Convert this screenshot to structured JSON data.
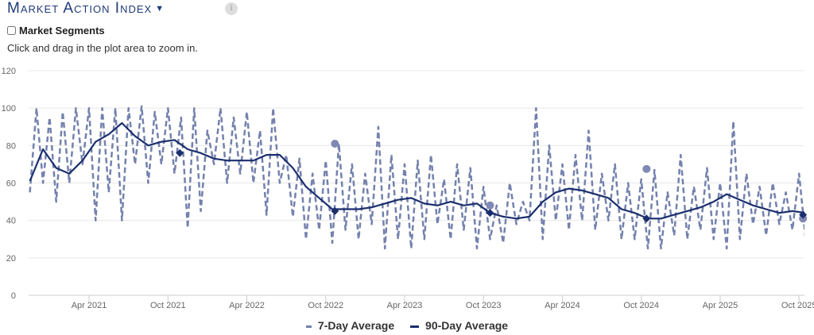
{
  "header": {
    "title": "Market Action Index",
    "info_icon": "i",
    "segments_label": "Market Segments",
    "hint": "Click and drag in the plot area to zoom in."
  },
  "chart_data": {
    "type": "line",
    "title": "Market Action Index",
    "ylim": [
      0,
      120
    ],
    "yticks": [
      0,
      20,
      40,
      60,
      80,
      100,
      120
    ],
    "x_origin": "2020-11-15",
    "x_units": "months since x_origin",
    "xticks": [
      {
        "label": "Apr 2021",
        "x": 4.5
      },
      {
        "label": "Oct 2021",
        "x": 10.5
      },
      {
        "label": "Apr 2022",
        "x": 16.5
      },
      {
        "label": "Oct 2022",
        "x": 22.5
      },
      {
        "label": "Apr 2023",
        "x": 28.5
      },
      {
        "label": "Oct 2023",
        "x": 34.5
      },
      {
        "label": "Apr 2024",
        "x": 40.5
      },
      {
        "label": "Oct 2024",
        "x": 46.5
      },
      {
        "label": "Apr 2025",
        "x": 52.5
      },
      {
        "label": "Oct 2025",
        "x": 58.5
      }
    ],
    "xlim": [
      -0.1,
      59.0
    ],
    "grid": true,
    "legend_position": "bottom",
    "series": [
      {
        "name": "7-Day Average",
        "color": "#7481ad",
        "style": "dashed",
        "step": 0.5,
        "values": [
          55,
          100,
          60,
          95,
          50,
          98,
          60,
          100,
          70,
          100,
          40,
          100,
          55,
          100,
          40,
          100,
          70,
          101,
          60,
          98,
          70,
          100,
          65,
          95,
          36,
          100,
          45,
          88,
          70,
          100,
          60,
          95,
          65,
          98,
          60,
          88,
          43,
          100,
          60,
          75,
          42,
          73,
          30,
          65,
          35,
          72,
          28,
          81,
          35,
          70,
          30,
          65,
          38,
          90,
          25,
          75,
          30,
          70,
          25,
          72,
          30,
          75,
          38,
          62,
          30,
          70,
          35,
          68,
          25,
          58,
          30,
          48,
          28,
          60,
          38,
          50,
          40,
          100,
          30,
          80,
          40,
          70,
          35,
          75,
          40,
          88,
          35,
          65,
          40,
          70,
          30,
          60,
          30,
          62,
          25,
          67,
          25,
          55,
          32,
          75,
          30,
          58,
          35,
          68,
          30,
          60,
          25,
          93,
          30,
          65,
          38,
          58,
          32,
          60,
          38,
          55,
          35,
          65,
          30,
          55
        ],
        "markers": [
          {
            "x": 23.2,
            "y": 81
          },
          {
            "x": 35.0,
            "y": 48
          },
          {
            "x": 46.9,
            "y": 67.5
          },
          {
            "x": 58.8,
            "y": 41
          }
        ]
      },
      {
        "name": "90-Day Average",
        "color": "#1b2f6e",
        "style": "solid",
        "step": 1,
        "values": [
          61,
          78,
          68,
          65,
          72,
          82,
          86,
          92,
          85,
          80,
          82,
          83,
          78,
          76,
          73,
          72,
          72,
          72,
          75,
          75,
          68,
          58,
          52,
          46,
          46,
          46,
          47,
          49,
          51,
          52,
          49,
          48,
          50,
          48,
          49,
          44,
          42,
          41,
          42,
          50,
          55,
          57,
          56,
          54,
          52,
          46,
          44,
          41,
          41,
          43,
          45,
          47,
          50,
          54,
          51,
          48,
          46,
          44,
          45,
          44
        ],
        "markers": [
          {
            "x": 11.4,
            "y": 76
          },
          {
            "x": 23.2,
            "y": 45
          },
          {
            "x": 35.0,
            "y": 44
          },
          {
            "x": 46.9,
            "y": 41
          },
          {
            "x": 58.8,
            "y": 43
          }
        ]
      }
    ]
  }
}
